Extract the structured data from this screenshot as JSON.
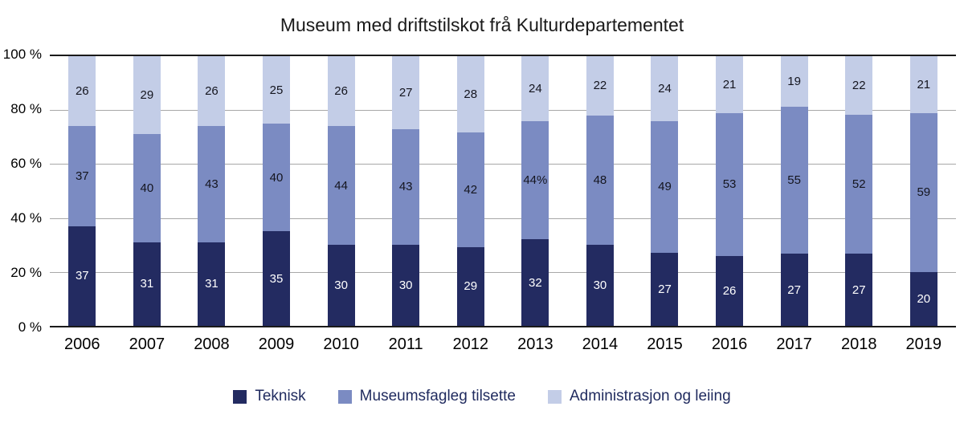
{
  "chart_data": {
    "type": "bar",
    "stacked": true,
    "title": "Museum med driftstilskot frå Kulturdepartementet",
    "categories": [
      "2006",
      "2007",
      "2008",
      "2009",
      "2010",
      "2011",
      "2012",
      "2013",
      "2014",
      "2015",
      "2016",
      "2017",
      "2018",
      "2019"
    ],
    "series": [
      {
        "name": "Teknisk",
        "color": "#232b61",
        "label_color": "#ffffff",
        "values": [
          37,
          31,
          31,
          35,
          30,
          30,
          29,
          32,
          30,
          27,
          26,
          27,
          27,
          20
        ],
        "labels": [
          "37",
          "31",
          "31",
          "35",
          "30",
          "30",
          "29",
          "32",
          "30",
          "27",
          "26",
          "27",
          "27",
          "20"
        ]
      },
      {
        "name": "Museumsfagleg tilsette",
        "color": "#7b8bc2",
        "label_color": "#14151f",
        "values": [
          37,
          40,
          43,
          40,
          44,
          43,
          42,
          44,
          48,
          49,
          53,
          55,
          52,
          59
        ],
        "labels": [
          "37",
          "40",
          "43",
          "40",
          "44",
          "43",
          "42",
          "44%",
          "48",
          "49",
          "53",
          "55",
          "52",
          "59"
        ]
      },
      {
        "name": "Administrasjon og leiing",
        "color": "#c3cde7",
        "label_color": "#14151f",
        "values": [
          26,
          29,
          26,
          25,
          26,
          27,
          28,
          24,
          22,
          24,
          21,
          19,
          22,
          21
        ],
        "labels": [
          "26",
          "29",
          "26",
          "25",
          "26",
          "27",
          "28",
          "24",
          "22",
          "24",
          "21",
          "19",
          "22",
          "21"
        ]
      }
    ],
    "y_ticks": [
      "100 %",
      "80 %",
      "60 %",
      "40 %",
      "20 %",
      "0 %"
    ],
    "ylim": [
      0,
      100
    ],
    "grid": true,
    "legend_position": "bottom"
  }
}
